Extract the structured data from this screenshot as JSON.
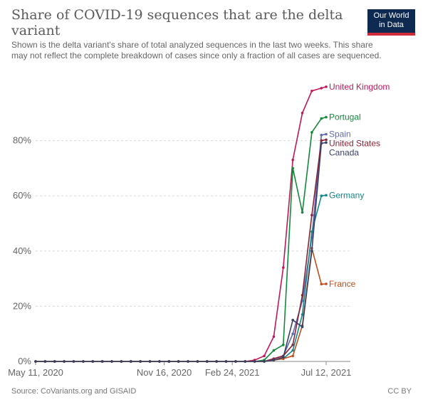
{
  "header": {
    "title": "Share of COVID-19 sequences that are the delta variant",
    "subtitle": "Shown is the delta variant's share of total analyzed sequences in the last two weeks. This share may not reflect the complete breakdown of cases since only a fraction of all cases are sequenced.",
    "logo_line1": "Our World",
    "logo_line2": "in Data",
    "logo_bg": "#0e2a50",
    "logo_accent": "#ce2a3a"
  },
  "footer": {
    "source": "Source: CoVariants.org and GISAID",
    "license": "CC BY"
  },
  "chart_data": {
    "type": "line",
    "x": [
      "2020-05-11",
      "2020-05-25",
      "2020-06-08",
      "2020-06-22",
      "2020-07-06",
      "2020-07-20",
      "2020-08-03",
      "2020-08-17",
      "2020-08-31",
      "2020-09-14",
      "2020-09-28",
      "2020-10-12",
      "2020-10-26",
      "2020-11-09",
      "2020-11-23",
      "2020-12-07",
      "2020-12-21",
      "2021-01-04",
      "2021-01-18",
      "2021-02-01",
      "2021-02-15",
      "2021-03-01",
      "2021-03-15",
      "2021-03-29",
      "2021-04-12",
      "2021-04-26",
      "2021-05-10",
      "2021-05-24",
      "2021-06-07",
      "2021-06-21",
      "2021-07-05",
      "2021-07-12"
    ],
    "x_ticks": [
      {
        "date": "2020-05-11",
        "label": "May 11, 2020"
      },
      {
        "date": "2020-11-16",
        "label": "Nov 16, 2020"
      },
      {
        "date": "2021-02-24",
        "label": "Feb 24, 2021"
      },
      {
        "date": "2021-07-12",
        "label": "Jul 12, 2021"
      }
    ],
    "y_ticks": [
      0,
      20,
      40,
      60,
      80
    ],
    "y_tick_labels": [
      "0%",
      "20%",
      "40%",
      "60%",
      "80%"
    ],
    "ylim": [
      0,
      100
    ],
    "grid": "horizontal dashed",
    "series": [
      {
        "name": "United Kingdom",
        "color": "#c2185b",
        "values": [
          0,
          0,
          0,
          0,
          0,
          0,
          0,
          0,
          0,
          0,
          0,
          0,
          0,
          0,
          0,
          0,
          0,
          0,
          0,
          0,
          0,
          0,
          0,
          0.5,
          2,
          9,
          34,
          73,
          90,
          98,
          99,
          99.5
        ]
      },
      {
        "name": "Portugal",
        "color": "#138a3a",
        "values": [
          0,
          0,
          0,
          0,
          0,
          0,
          0,
          0,
          0,
          0,
          0,
          0,
          0,
          0,
          0,
          0,
          0,
          0,
          0,
          0,
          0,
          0,
          0,
          0,
          0.5,
          4,
          6,
          70,
          54,
          83,
          88,
          88.5
        ]
      },
      {
        "name": "Spain",
        "color": "#5e6ab0",
        "values": [
          0,
          0,
          0,
          0,
          0,
          0,
          0,
          0,
          0,
          0,
          0,
          0,
          0,
          0,
          0,
          0,
          0,
          0,
          0,
          0,
          0,
          0,
          0,
          0,
          0,
          1,
          2,
          10,
          22,
          45,
          82,
          82.3
        ]
      },
      {
        "name": "United States",
        "color": "#8b2234",
        "values": [
          0,
          0,
          0,
          0,
          0,
          0,
          0,
          0,
          0,
          0,
          0,
          0,
          0,
          0,
          0,
          0,
          0,
          0,
          0,
          0,
          0,
          0,
          0,
          0,
          0,
          1,
          2,
          6,
          24,
          53,
          80,
          80.3
        ]
      },
      {
        "name": "Germany",
        "color": "#13878a",
        "values": [
          0,
          0,
          0,
          0,
          0,
          0,
          0,
          0,
          0,
          0,
          0,
          0,
          0,
          0,
          0,
          0,
          0,
          0,
          0,
          0,
          0,
          0,
          0,
          0,
          0,
          0.5,
          1,
          4,
          17,
          47,
          60,
          60.2
        ]
      },
      {
        "name": "France",
        "color": "#c04f1d",
        "values": [
          0,
          0,
          0,
          0,
          0,
          0,
          0,
          0,
          0,
          0,
          0,
          0,
          0,
          0,
          0,
          0,
          0,
          0,
          0,
          0,
          0,
          0,
          0,
          0,
          0,
          0.5,
          1,
          2,
          13,
          41,
          28,
          28.1
        ]
      },
      {
        "name": "Canada",
        "color": "#3b3f66",
        "values": [
          0,
          0,
          0,
          0,
          0,
          0,
          0,
          0,
          0,
          0,
          0,
          0,
          0,
          0,
          0,
          0,
          0,
          0,
          0,
          0,
          0,
          0,
          0,
          0,
          0,
          0.5,
          1.5,
          15,
          12.5,
          40,
          79,
          79.3
        ]
      }
    ]
  }
}
